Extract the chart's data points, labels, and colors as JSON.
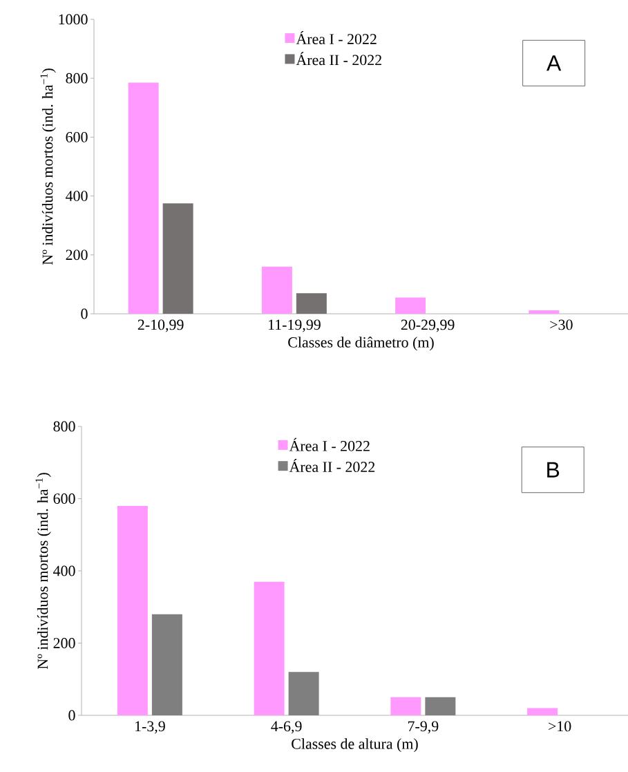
{
  "chart_data": [
    {
      "type": "bar",
      "xlabel": "Classes de diâmetro (m)",
      "ylabel": "Nº indivíduos mortos (ind. ha$^{−1}$)",
      "categories": [
        "2-10,99",
        "11-19,99",
        "20-29,99",
        ">30"
      ],
      "series": [
        {
          "name": "Área I - 2022",
          "color": "#ff99ff",
          "values": [
            785,
            160,
            55,
            12
          ]
        },
        {
          "name": "Área II - 2022",
          "color": "#767171",
          "values": [
            375,
            70,
            0,
            0
          ]
        }
      ],
      "ylim": [
        0,
        1000
      ],
      "yticks": [
        0,
        200,
        400,
        600,
        800,
        1000
      ],
      "legend": "top",
      "annotations": [
        "A"
      ]
    },
    {
      "type": "bar",
      "xlabel": "Classes de altura (m)",
      "ylabel": "Nº indivíduos mortos (ind. ha$^{−1}$)",
      "categories": [
        "1-3,9",
        "4-6,9",
        "7-9,9",
        ">10"
      ],
      "series": [
        {
          "name": "Área I - 2022",
          "color": "#ff99ff",
          "values": [
            580,
            370,
            50,
            20
          ]
        },
        {
          "name": "Área II - 2022",
          "color": "#7f7f7f",
          "values": [
            280,
            120,
            50,
            0
          ]
        }
      ],
      "ylim": [
        0,
        800
      ],
      "yticks": [
        0,
        200,
        400,
        600,
        800
      ],
      "legend": "top",
      "annotations": [
        "B"
      ]
    }
  ]
}
